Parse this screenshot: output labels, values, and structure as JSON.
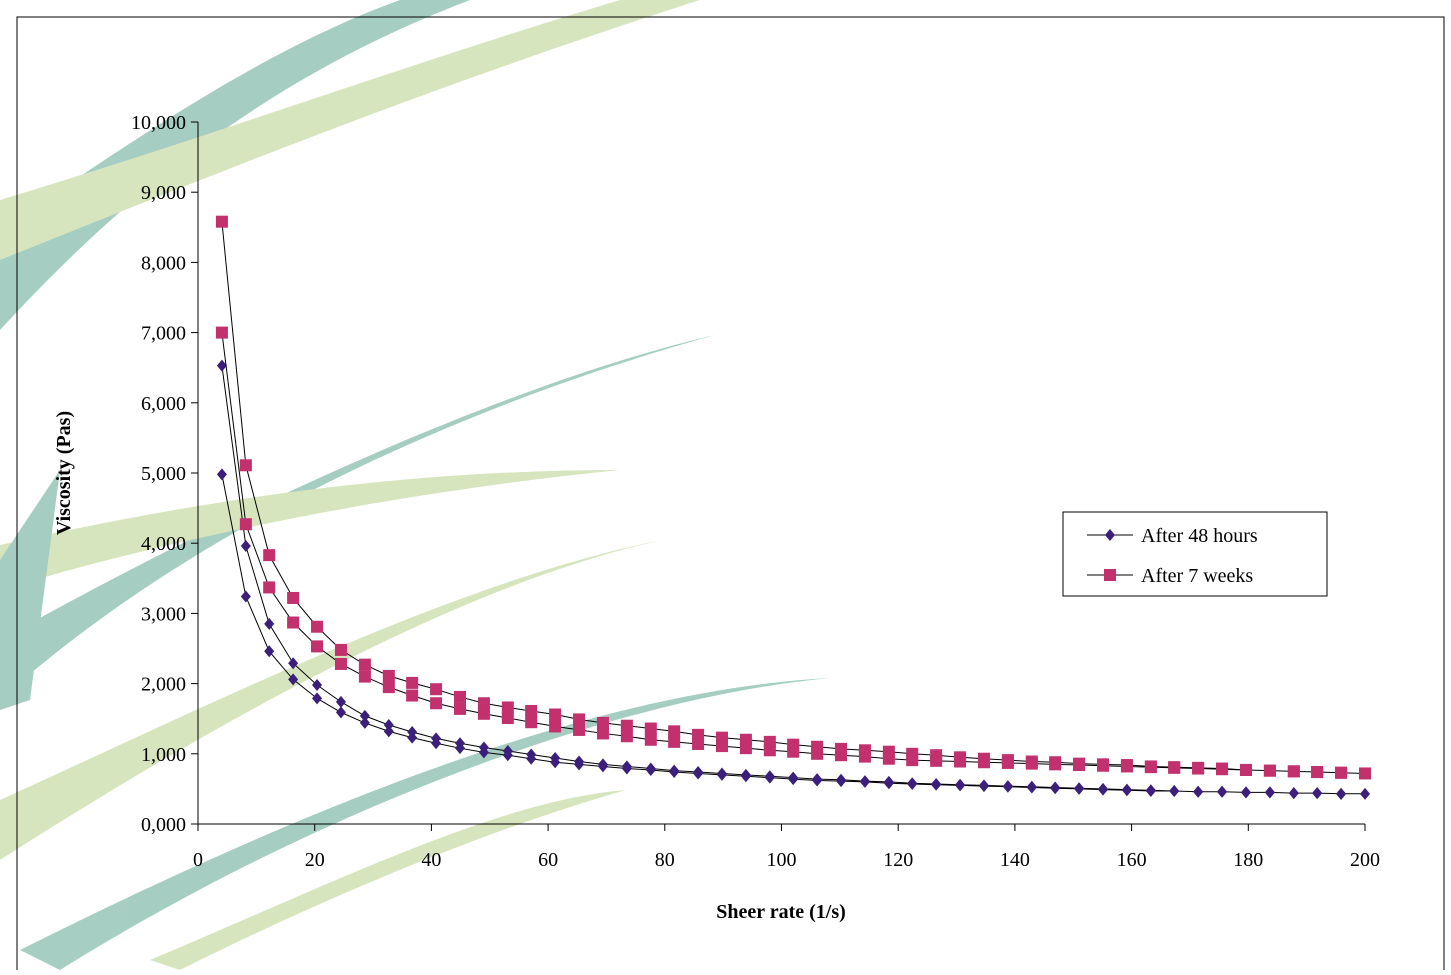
{
  "chart_data": {
    "type": "line",
    "x_label": "Sheer rate (1/s)",
    "y_label": "Viscosity (Pas)",
    "x": [
      4.1,
      8.2,
      12.2,
      16.3,
      20.4,
      24.5,
      28.6,
      32.7,
      36.7,
      40.8,
      44.9,
      49,
      53.1,
      57.1,
      61.2,
      65.3,
      69.4,
      73.5,
      77.6,
      81.6,
      85.7,
      89.8,
      93.9,
      98,
      102,
      106.1,
      110.2,
      114.3,
      118.4,
      122.4,
      126.5,
      130.6,
      134.7,
      138.8,
      142.9,
      146.9,
      151,
      155.1,
      159.2,
      163.3,
      167.3,
      171.4,
      175.5,
      179.6,
      183.7,
      187.8,
      191.8,
      195.9,
      200,
      195.9,
      191.8,
      187.8,
      183.7,
      179.6,
      175.5,
      171.4,
      167.3,
      163.3,
      159.2,
      155.1,
      151,
      146.9,
      142.9,
      138.8,
      134.7,
      130.6,
      126.5,
      122.4,
      118.4,
      114.3,
      110.2,
      106.1,
      102,
      98,
      93.9,
      89.8,
      85.7,
      81.6,
      77.6,
      73.5,
      69.4,
      65.3,
      61.2,
      57.1,
      53.1,
      49,
      44.9,
      40.8,
      36.7,
      32.7,
      28.6,
      24.5,
      20.4,
      16.3,
      12.2,
      8.2,
      4.1
    ],
    "series": [
      {
        "name": "After 48 hours",
        "color": "#3b1f7a",
        "marker": "diamond",
        "values": [
          6530,
          3960,
          2850,
          2290,
          1980,
          1740,
          1540,
          1410,
          1310,
          1220,
          1150,
          1090,
          1040,
          990,
          940,
          890,
          850,
          820,
          790,
          760,
          740,
          720,
          700,
          680,
          660,
          640,
          630,
          610,
          600,
          580,
          570,
          560,
          550,
          540,
          530,
          520,
          510,
          500,
          490,
          480,
          470,
          460,
          460,
          450,
          450,
          440,
          440,
          430,
          430,
          430,
          440,
          440,
          450,
          450,
          460,
          460,
          470,
          470,
          480,
          490,
          500,
          510,
          520,
          530,
          540,
          550,
          560,
          570,
          580,
          600,
          610,
          620,
          640,
          660,
          680,
          700,
          720,
          740,
          770,
          790,
          820,
          850,
          880,
          930,
          980,
          1020,
          1080,
          1150,
          1230,
          1320,
          1440,
          1590,
          1790,
          2060,
          2460,
          3240,
          4980
        ]
      },
      {
        "name": "After 7 weeks",
        "color": "#c2306e",
        "marker": "square",
        "values": [
          8580,
          5110,
          3830,
          3220,
          2810,
          2480,
          2270,
          2110,
          2010,
          1920,
          1810,
          1720,
          1660,
          1610,
          1560,
          1490,
          1440,
          1400,
          1360,
          1320,
          1270,
          1230,
          1200,
          1170,
          1130,
          1100,
          1070,
          1050,
          1030,
          1000,
          980,
          950,
          930,
          910,
          890,
          880,
          860,
          850,
          840,
          820,
          810,
          800,
          790,
          770,
          760,
          750,
          740,
          730,
          720,
          730,
          740,
          750,
          760,
          770,
          780,
          790,
          800,
          810,
          820,
          830,
          840,
          850,
          860,
          870,
          880,
          890,
          900,
          910,
          930,
          960,
          980,
          1000,
          1030,
          1050,
          1080,
          1110,
          1140,
          1170,
          1200,
          1250,
          1290,
          1340,
          1390,
          1450,
          1510,
          1570,
          1640,
          1720,
          1830,
          1950,
          2100,
          2280,
          2530,
          2870,
          3370,
          4270,
          7000
        ]
      }
    ],
    "xlim": [
      0,
      200
    ],
    "xticks": [
      0,
      20,
      40,
      60,
      80,
      100,
      120,
      140,
      160,
      180,
      200
    ],
    "ylim": [
      0,
      10000
    ],
    "yticks": [
      {
        "value": 0,
        "label": "0,000"
      },
      {
        "value": 1000,
        "label": "1,000"
      },
      {
        "value": 2000,
        "label": "2,000"
      },
      {
        "value": 3000,
        "label": "3,000"
      },
      {
        "value": 4000,
        "label": "4,000"
      },
      {
        "value": 5000,
        "label": "5,000"
      },
      {
        "value": 6000,
        "label": "6,000"
      },
      {
        "value": 7000,
        "label": "7,000"
      },
      {
        "value": 8000,
        "label": "8,000"
      },
      {
        "value": 9000,
        "label": "9,000"
      },
      {
        "value": 10000,
        "label": "10,000"
      }
    ],
    "grid": false,
    "legend": "right"
  }
}
